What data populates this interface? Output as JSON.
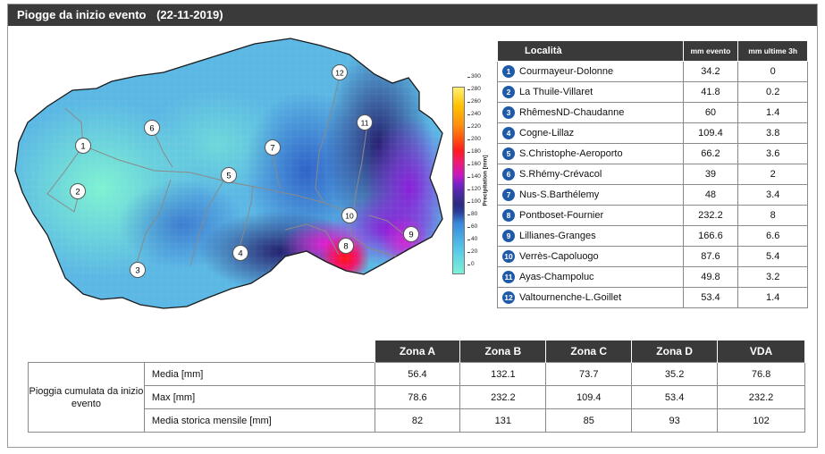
{
  "header": {
    "title": "Piogge da inizio evento",
    "date": "(22-11-2019)"
  },
  "legend": {
    "title": "Precipitation [mm]",
    "ticks": [
      "0",
      "20",
      "40",
      "60",
      "80",
      "100",
      "120",
      "140",
      "160",
      "180",
      "200",
      "220",
      "240",
      "260",
      "280",
      "300"
    ]
  },
  "map": {
    "markers": [
      "1",
      "2",
      "3",
      "4",
      "5",
      "6",
      "7",
      "8",
      "9",
      "10",
      "11",
      "12"
    ]
  },
  "stations": {
    "headers": {
      "location": "Località",
      "event": "mm evento",
      "last3h": "mm ultime 3h"
    },
    "rows": [
      {
        "n": "1",
        "name": "Courmayeur-Dolonne",
        "event": "34.2",
        "last3h": "0"
      },
      {
        "n": "2",
        "name": "La Thuile-Villaret",
        "event": "41.8",
        "last3h": "0.2"
      },
      {
        "n": "3",
        "name": "RhêmesND-Chaudanne",
        "event": "60",
        "last3h": "1.4"
      },
      {
        "n": "4",
        "name": "Cogne-Lillaz",
        "event": "109.4",
        "last3h": "3.8"
      },
      {
        "n": "5",
        "name": "S.Christophe-Aeroporto",
        "event": "66.2",
        "last3h": "3.6"
      },
      {
        "n": "6",
        "name": "S.Rhémy-Crévacol",
        "event": "39",
        "last3h": "2"
      },
      {
        "n": "7",
        "name": "Nus-S.Barthélemy",
        "event": "48",
        "last3h": "3.4"
      },
      {
        "n": "8",
        "name": "Pontboset-Fournier",
        "event": "232.2",
        "last3h": "8"
      },
      {
        "n": "9",
        "name": "Lillianes-Granges",
        "event": "166.6",
        "last3h": "6.6"
      },
      {
        "n": "10",
        "name": "Verrès-Capoluogo",
        "event": "87.6",
        "last3h": "5.4"
      },
      {
        "n": "11",
        "name": "Ayas-Champoluc",
        "event": "49.8",
        "last3h": "3.2"
      },
      {
        "n": "12",
        "name": "Valtournenche-L.Goillet",
        "event": "53.4",
        "last3h": "1.4"
      }
    ]
  },
  "zones": {
    "headers": [
      "Zona A",
      "Zona B",
      "Zona C",
      "Zona D",
      "VDA"
    ],
    "group_label": "Pioggia cumulata da inizio evento",
    "rows": [
      {
        "label": "Media [mm]",
        "values": [
          "56.4",
          "132.1",
          "73.7",
          "35.2",
          "76.8"
        ]
      },
      {
        "label": "Max [mm]",
        "values": [
          "78.6",
          "232.2",
          "109.4",
          "53.4",
          "232.2"
        ]
      },
      {
        "label": "Media storica mensile [mm]",
        "values": [
          "82",
          "131",
          "85",
          "93",
          "102"
        ]
      }
    ]
  }
}
